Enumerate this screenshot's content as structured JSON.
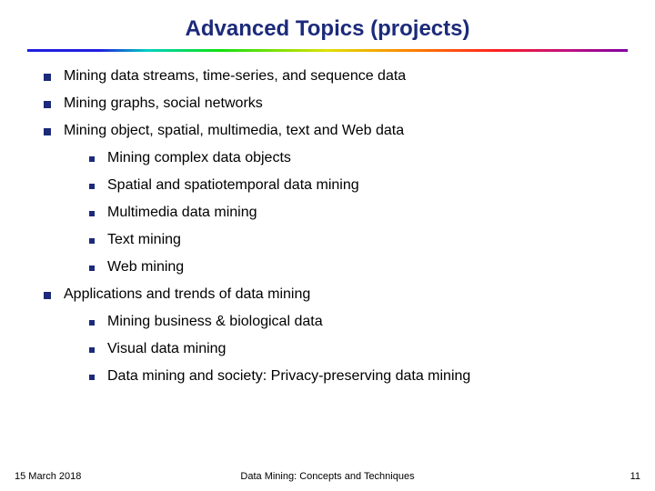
{
  "title": "Advanced Topics (projects)",
  "colors": {
    "title_color": "#1c2a7a",
    "bullet_color": "#1c2a7a",
    "background": "#ffffff"
  },
  "bullets": [
    {
      "text": "Mining data streams, time-series, and sequence data",
      "children": []
    },
    {
      "text": "Mining graphs, social networks",
      "children": []
    },
    {
      "text": "Mining object, spatial, multimedia, text and Web data",
      "children": [
        {
          "text": "Mining complex data objects"
        },
        {
          "text": "Spatial and spatiotemporal data mining"
        },
        {
          "text": "Multimedia data mining"
        },
        {
          "text": "Text mining"
        },
        {
          "text": "Web mining"
        }
      ]
    },
    {
      "text": "Applications and trends of data mining",
      "children": [
        {
          "text": "Mining business & biological data"
        },
        {
          "text": "Visual data mining"
        },
        {
          "text": "Data mining and society: Privacy-preserving data mining"
        }
      ]
    }
  ],
  "footer": {
    "date": "15 March 2018",
    "center": "Data Mining: Concepts and Techniques",
    "page": "11"
  }
}
